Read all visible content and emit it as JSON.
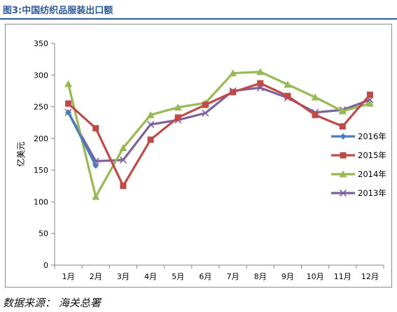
{
  "figure_title": "图3:中国纺织品服装出口额",
  "source_note": "数据来源： 海关总署",
  "chart_data": {
    "type": "line",
    "title": "",
    "ylabel": "亿美元",
    "xlabel": "",
    "ylim": [
      0,
      350
    ],
    "yticks": [
      0,
      50,
      100,
      150,
      200,
      250,
      300,
      350
    ],
    "categories": [
      "1月",
      "2月",
      "3月",
      "4月",
      "5月",
      "6月",
      "7月",
      "8月",
      "9月",
      "10月",
      "11月",
      "12月"
    ],
    "grid": false,
    "legend_position": "right",
    "series": [
      {
        "name": "2016年",
        "color": "#4a7ebb",
        "marker": "diamond",
        "values": [
          241,
          157,
          null,
          null,
          null,
          null,
          null,
          null,
          null,
          null,
          null,
          null
        ]
      },
      {
        "name": "2015年",
        "color": "#be4b48",
        "marker": "square",
        "values": [
          255,
          216,
          125,
          198,
          233,
          253,
          273,
          287,
          267,
          237,
          219,
          269
        ]
      },
      {
        "name": "2014年",
        "color": "#98b954",
        "marker": "triangle",
        "values": [
          286,
          108,
          185,
          237,
          249,
          256,
          303,
          305,
          285,
          265,
          243,
          255
        ]
      },
      {
        "name": "2013年",
        "color": "#7d60a0",
        "marker": "x",
        "values": [
          241,
          164,
          166,
          222,
          229,
          240,
          275,
          280,
          264,
          241,
          245,
          261
        ]
      }
    ]
  }
}
